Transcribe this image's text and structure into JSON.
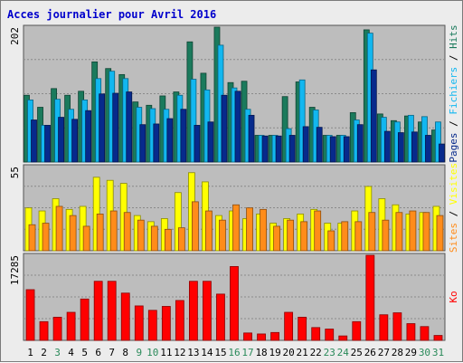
{
  "chart_data": {
    "type": "bar",
    "title": "Acces journalier pour Avril 2016",
    "categories": [
      "1",
      "2",
      "3",
      "4",
      "5",
      "6",
      "7",
      "8",
      "9",
      "10",
      "11",
      "12",
      "13",
      "14",
      "15",
      "16",
      "17",
      "18",
      "19",
      "20",
      "21",
      "22",
      "23",
      "24",
      "25",
      "26",
      "27",
      "28",
      "29",
      "30",
      "31"
    ],
    "weekend_days": [
      "3",
      "9",
      "10",
      "16",
      "17",
      "23",
      "24",
      "30",
      "31"
    ],
    "panels": [
      {
        "name": "top",
        "ymax_label": "202",
        "ymax": 202,
        "right_label": [
          "Pages",
          "Fichiers",
          "Hits"
        ],
        "series": [
          {
            "name": "Hits",
            "color": "#1b7a5c",
            "values": [
              100,
              82,
              110,
              100,
              106,
              150,
              140,
              131,
              90,
              85,
              99,
              105,
              180,
              133,
              202,
              119,
              121,
              40,
              40,
              98,
              120,
              82,
              40,
              40,
              74,
              198,
              72,
              62,
              69,
              60,
              48
            ]
          },
          {
            "name": "Fichiers",
            "color": "#12b7f0",
            "values": [
              93,
              55,
              94,
              79,
              93,
              125,
              136,
              125,
              82,
              80,
              79,
              100,
              124,
              108,
              175,
              111,
              79,
              40,
              40,
              50,
              123,
              78,
              40,
              40,
              63,
              193,
              67,
              60,
              70,
              68,
              60
            ]
          },
          {
            "name": "Pages",
            "color": "#072a8c",
            "values": [
              63,
              55,
              67,
              64,
              77,
              102,
              103,
              105,
              56,
              57,
              65,
              79,
              55,
              60,
              100,
              106,
              70,
              39,
              39,
              40,
              53,
              52,
              38,
              38,
              56,
              138,
              46,
              44,
              45,
              40,
              27
            ]
          }
        ]
      },
      {
        "name": "middle",
        "ymax_label": "55",
        "ymax": 55,
        "right_label": [
          "Sites",
          "Visites"
        ],
        "series": [
          {
            "name": "Visites",
            "color": "#ffff00",
            "values": [
              28,
              26,
              34,
              27,
              29,
              48,
              46,
              44,
              23,
              19,
              21,
              38,
              51,
              45,
              23,
              26,
              21,
              24,
              18,
              21,
              24,
              27,
              18,
              18,
              26,
              42,
              34,
              30,
              24,
              25,
              29
            ]
          },
          {
            "name": "Sites",
            "color": "#ff8c1a",
            "values": [
              17,
              18,
              29,
              23,
              16,
              24,
              26,
              25,
              20,
              16,
              14,
              15,
              32,
              26,
              20,
              30,
              28,
              27,
              16,
              20,
              19,
              26,
              13,
              19,
              19,
              25,
              20,
              25,
              26,
              25,
              23
            ]
          }
        ]
      },
      {
        "name": "bottom",
        "ymax_label": "17285",
        "ymax": 17285,
        "right_label": [
          "Ko"
        ],
        "series": [
          {
            "name": "Ko",
            "color": "#ff0000",
            "values": [
              10300,
              3800,
              4700,
              5700,
              8400,
              12000,
              12000,
              9600,
              7000,
              6100,
              6900,
              8100,
              12000,
              12000,
              9400,
              15000,
              1500,
              1300,
              1600,
              5700,
              4700,
              2600,
              2300,
              900,
              3800,
              17285,
              5200,
              5600,
              3400,
              2800,
              1000
            ]
          }
        ]
      }
    ]
  }
}
